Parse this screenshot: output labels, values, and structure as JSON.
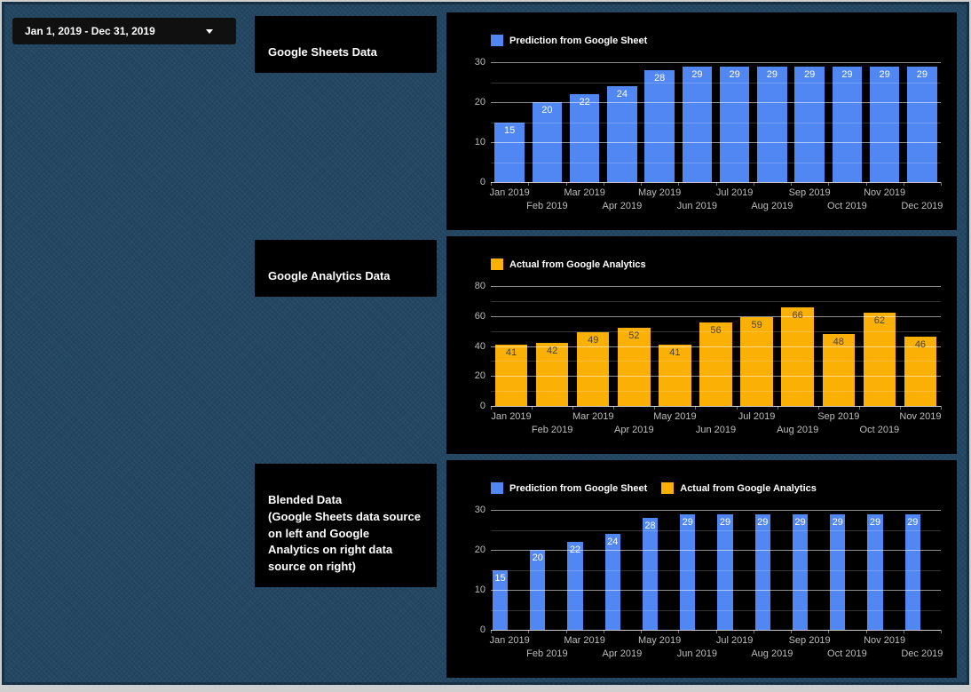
{
  "date_control": {
    "label": "Jan 1, 2019 - Dec 31, 2019"
  },
  "title_cards": [
    {
      "text": "Google Sheets Data"
    },
    {
      "text": "Google Analytics Data"
    },
    {
      "text": "Blended Data\n(Google Sheets data source on left and Google Analytics on right data source on right)"
    }
  ],
  "colors": {
    "prediction_blue": "#5187f2",
    "actual_orange": "#fbb005",
    "panel_background": "#000000",
    "canvas_background": "#234763",
    "axis_text": "#bdbdbd"
  },
  "chart_data": [
    {
      "type": "bar",
      "title": "Google Sheets Data",
      "legend_position": "top-left",
      "grid": true,
      "categories": [
        "Jan 2019",
        "Feb 2019",
        "Mar 2019",
        "Apr 2019",
        "May 2019",
        "Jun 2019",
        "Jul 2019",
        "Aug 2019",
        "Sep 2019",
        "Oct 2019",
        "Nov 2019",
        "Dec 2019"
      ],
      "series": [
        {
          "name": "Prediction from Google Sheet",
          "color": "#5187f2",
          "label_color": "#ffffff",
          "values": [
            15,
            20,
            22,
            24,
            28,
            29,
            29,
            29,
            29,
            29,
            29,
            29
          ]
        }
      ],
      "xlabel": "",
      "ylabel": "",
      "ylim": [
        0,
        30
      ],
      "yticks": [
        0,
        10,
        20,
        30
      ],
      "minor_step": 5
    },
    {
      "type": "bar",
      "title": "Google Analytics Data",
      "legend_position": "top-left",
      "grid": true,
      "categories": [
        "Jan 2019",
        "Feb 2019",
        "Mar 2019",
        "Apr 2019",
        "May 2019",
        "Jun 2019",
        "Jul 2019",
        "Aug 2019",
        "Sep 2019",
        "Oct 2019",
        "Nov 2019"
      ],
      "series": [
        {
          "name": "Actual from Google Analytics",
          "color": "#fbb005",
          "label_color": "#424242",
          "values": [
            41,
            42,
            49,
            52,
            41,
            56,
            59,
            66,
            48,
            62,
            46
          ]
        }
      ],
      "xlabel": "",
      "ylabel": "",
      "ylim": [
        0,
        80
      ],
      "yticks": [
        0,
        20,
        40,
        60,
        80
      ],
      "minor_step": 10
    },
    {
      "type": "bar",
      "title": "Blended Data",
      "legend_position": "top-left",
      "grid": true,
      "categories": [
        "Jan 2019",
        "Feb 2019",
        "Mar 2019",
        "Apr 2019",
        "May 2019",
        "Jun 2019",
        "Jul 2019",
        "Aug 2019",
        "Sep 2019",
        "Oct 2019",
        "Nov 2019",
        "Dec 2019"
      ],
      "series": [
        {
          "name": "Prediction from Google Sheet",
          "color": "#5187f2",
          "label_color": "#ffffff",
          "values": [
            15,
            20,
            22,
            24,
            28,
            29,
            29,
            29,
            29,
            29,
            29,
            29
          ]
        },
        {
          "name": "Actual from Google Analytics",
          "color": "#fbb005",
          "label_color": "#424242",
          "values": []
        }
      ],
      "xlabel": "",
      "ylabel": "",
      "ylim": [
        0,
        30
      ],
      "yticks": [
        0,
        10,
        20,
        30
      ],
      "minor_step": 5
    }
  ]
}
